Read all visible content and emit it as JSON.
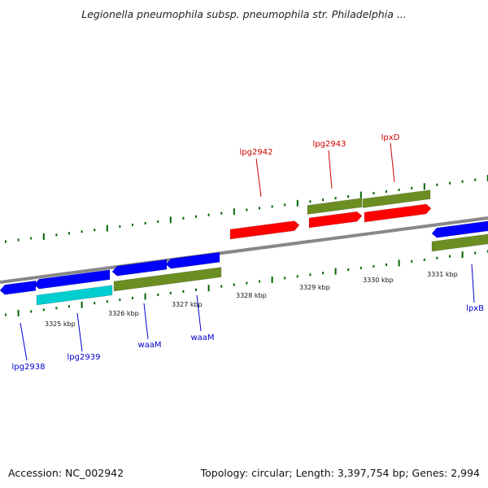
{
  "title": "Legionella pneumophila subsp. pneumophila str. Philadelphia ...",
  "footer": {
    "accession": "Accession: NC_002942",
    "summary": "Topology: circular; Length: 3,397,754 bp; Genes: 2,994"
  },
  "colors": {
    "forward_gene": "#ff0000",
    "reverse_gene": "#0000ff",
    "feature_green": "#6b8e23",
    "feature_cyan": "#00ced1",
    "backbone": "#888888",
    "tick": "#006400",
    "forward_label": "#cc0000",
    "reverse_label": "#0000cc"
  },
  "scale_labels": [
    "3325 kbp",
    "3326 kbp",
    "3327 kbp",
    "3328 kbp",
    "3329 kbp",
    "3330 kbp",
    "3331 kbp"
  ],
  "gene_labels": [
    {
      "name": "lpg2942",
      "strand": "forward"
    },
    {
      "name": "lpg2943",
      "strand": "forward"
    },
    {
      "name": "lpxD",
      "strand": "forward"
    },
    {
      "name": "lpg2938",
      "strand": "reverse"
    },
    {
      "name": "lpg2939",
      "strand": "reverse"
    },
    {
      "name": "waaM",
      "strand": "reverse"
    },
    {
      "name": "waaM",
      "strand": "reverse"
    },
    {
      "name": "lpxB",
      "strand": "reverse"
    }
  ]
}
